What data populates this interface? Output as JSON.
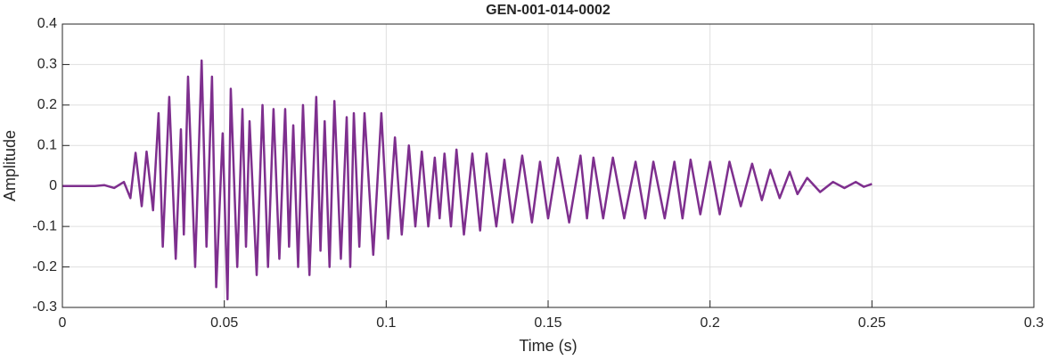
{
  "chart_data": {
    "type": "line",
    "title": "GEN-001-014-0002",
    "x_label": "Time (s)",
    "y_label": "Amplitude",
    "xlim": [
      0,
      0.3
    ],
    "ylim": [
      -0.3,
      0.4
    ],
    "xticks": [
      0,
      0.05,
      0.1,
      0.15,
      0.2,
      0.25,
      0.3
    ],
    "yticks": [
      -0.3,
      -0.2,
      -0.1,
      0,
      0.1,
      0.2,
      0.3,
      0.4
    ],
    "grid": true,
    "x": [
      0,
      0.01,
      0.013,
      0.016,
      0.019,
      0.021,
      0.0226,
      0.0245,
      0.026,
      0.028,
      0.0297,
      0.031,
      0.033,
      0.035,
      0.0366,
      0.0375,
      0.0388,
      0.041,
      0.043,
      0.0445,
      0.0462,
      0.0475,
      0.0495,
      0.051,
      0.052,
      0.054,
      0.0556,
      0.0567,
      0.0578,
      0.06,
      0.0618,
      0.0635,
      0.0652,
      0.067,
      0.0688,
      0.07,
      0.0713,
      0.0728,
      0.0743,
      0.0763,
      0.0784,
      0.0797,
      0.081,
      0.0825,
      0.084,
      0.086,
      0.0878,
      0.0889,
      0.09,
      0.0917,
      0.0933,
      0.096,
      0.0985,
      0.1006,
      0.1027,
      0.1048,
      0.107,
      0.109,
      0.111,
      0.113,
      0.115,
      0.1165,
      0.118,
      0.12,
      0.1217,
      0.124,
      0.1266,
      0.129,
      0.131,
      0.134,
      0.1365,
      0.139,
      0.142,
      0.145,
      0.1475,
      0.15,
      0.153,
      0.1565,
      0.16,
      0.162,
      0.164,
      0.167,
      0.17,
      0.1735,
      0.177,
      0.18,
      0.1825,
      0.186,
      0.189,
      0.1915,
      0.194,
      0.197,
      0.2,
      0.203,
      0.206,
      0.2095,
      0.213,
      0.216,
      0.2186,
      0.2215,
      0.2246,
      0.227,
      0.23,
      0.234,
      0.238,
      0.2415,
      0.245,
      0.2475,
      0.25
    ],
    "series": [
      {
        "color": "#7e2f8e",
        "values": [
          0,
          0,
          0.002,
          -0.005,
          0.01,
          -0.03,
          0.082,
          -0.05,
          0.085,
          -0.06,
          0.18,
          -0.15,
          0.22,
          -0.18,
          0.14,
          -0.12,
          0.27,
          -0.2,
          0.31,
          -0.15,
          0.27,
          -0.25,
          0.13,
          -0.28,
          0.24,
          -0.2,
          0.19,
          -0.15,
          0.16,
          -0.22,
          0.2,
          -0.2,
          0.19,
          -0.18,
          0.19,
          -0.15,
          0.15,
          -0.2,
          0.2,
          -0.22,
          0.22,
          -0.16,
          0.16,
          -0.2,
          0.21,
          -0.18,
          0.17,
          -0.2,
          0.18,
          -0.15,
          0.18,
          -0.17,
          0.18,
          -0.13,
          0.12,
          -0.12,
          0.1,
          -0.1,
          0.085,
          -0.1,
          0.07,
          -0.08,
          0.08,
          -0.1,
          0.09,
          -0.12,
          0.08,
          -0.11,
          0.08,
          -0.1,
          0.065,
          -0.09,
          0.075,
          -0.09,
          0.06,
          -0.08,
          0.07,
          -0.09,
          0.075,
          -0.08,
          0.07,
          -0.08,
          0.07,
          -0.08,
          0.06,
          -0.08,
          0.06,
          -0.08,
          0.06,
          -0.08,
          0.065,
          -0.07,
          0.06,
          -0.07,
          0.06,
          -0.05,
          0.055,
          -0.035,
          0.04,
          -0.03,
          0.035,
          -0.02,
          0.02,
          -0.015,
          0.01,
          -0.005,
          0.01,
          -0.002,
          0.005
        ]
      }
    ]
  }
}
